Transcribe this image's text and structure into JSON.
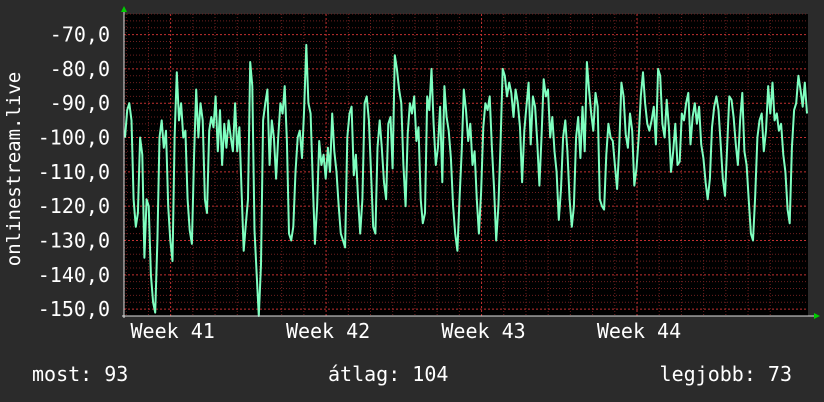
{
  "colors": {
    "background": "#2b2b2b",
    "plot_background": "#000000",
    "grid": "#6e1f1f",
    "line": "#7fffc0",
    "axis": "#e0e0e0",
    "arrow": "#00cc00",
    "text": "#ffffff"
  },
  "stats": {
    "current_label": "most:",
    "current_value": "93",
    "average_label": "átlag:",
    "average_value": "104",
    "best_label": "legjobb:",
    "best_value": "73"
  },
  "chart_data": {
    "type": "line",
    "ylabel": "onlinestream.live",
    "ylim": [
      -152,
      -64
    ],
    "y_ticks": [
      {
        "value": -70,
        "label": "-70,0"
      },
      {
        "value": -80,
        "label": "-80,0"
      },
      {
        "value": -90,
        "label": "-90,0"
      },
      {
        "value": -100,
        "label": "-100,0"
      },
      {
        "value": -110,
        "label": "-110,0"
      },
      {
        "value": -120,
        "label": "-120,0"
      },
      {
        "value": -130,
        "label": "-130,0"
      },
      {
        "value": -140,
        "label": "-140,0"
      },
      {
        "value": -150,
        "label": "-150,0"
      }
    ],
    "x_ticks": [
      {
        "week": 41,
        "label": "Week 41"
      },
      {
        "week": 42,
        "label": "Week 42"
      },
      {
        "week": 43,
        "label": "Week 43"
      },
      {
        "week": 44,
        "label": "Week 44"
      }
    ],
    "xlim_weeks": [
      40.7,
      45.1
    ],
    "grid": true,
    "series": [
      {
        "values": [
          -100,
          -92,
          -90,
          -95,
          -118,
          -126,
          -122,
          -100,
          -105,
          -135,
          -118,
          -120,
          -140,
          -148,
          -151,
          -130,
          -100,
          -95,
          -103,
          -98,
          -120,
          -130,
          -136,
          -100,
          -81,
          -95,
          -90,
          -100,
          -98,
          -118,
          -127,
          -131,
          -105,
          -86,
          -100,
          -90,
          -95,
          -118,
          -122,
          -98,
          -94,
          -97,
          -88,
          -104,
          -92,
          -108,
          -96,
          -103,
          -95,
          -100,
          -104,
          -90,
          -104,
          -97,
          -115,
          -133,
          -125,
          -118,
          -78,
          -85,
          -127,
          -140,
          -152,
          -137,
          -95,
          -90,
          -86,
          -108,
          -95,
          -100,
          -112,
          -100,
          -90,
          -93,
          -85,
          -101,
          -128,
          -130,
          -126,
          -110,
          -100,
          -98,
          -106,
          -92,
          -73,
          -90,
          -93,
          -113,
          -131,
          -120,
          -101,
          -108,
          -105,
          -112,
          -103,
          -110,
          -93,
          -104,
          -110,
          -120,
          -128,
          -130,
          -132,
          -100,
          -93,
          -91,
          -111,
          -105,
          -118,
          -128,
          -118,
          -90,
          -88,
          -95,
          -110,
          -126,
          -128,
          -103,
          -95,
          -103,
          -113,
          -118,
          -96,
          -94,
          -109,
          -76,
          -80,
          -86,
          -90,
          -108,
          -120,
          -99,
          -90,
          -93,
          -88,
          -101,
          -97,
          -118,
          -125,
          -122,
          -88,
          -92,
          -80,
          -96,
          -108,
          -103,
          -91,
          -113,
          -85,
          -94,
          -98,
          -106,
          -120,
          -128,
          -133,
          -118,
          -104,
          -86,
          -92,
          -101,
          -96,
          -108,
          -104,
          -118,
          -128,
          -116,
          -97,
          -90,
          -92,
          -88,
          -103,
          -115,
          -130,
          -120,
          -102,
          -80,
          -82,
          -88,
          -84,
          -87,
          -94,
          -86,
          -90,
          -97,
          -113,
          -98,
          -91,
          -84,
          -102,
          -88,
          -91,
          -101,
          -114,
          -100,
          -83,
          -88,
          -86,
          -100,
          -94,
          -104,
          -110,
          -124,
          -115,
          -100,
          -95,
          -104,
          -118,
          -126,
          -120,
          -100,
          -94,
          -106,
          -91,
          -104,
          -78,
          -86,
          -93,
          -98,
          -87,
          -91,
          -118,
          -120,
          -121,
          -105,
          -96,
          -100,
          -101,
          -108,
          -115,
          -103,
          -84,
          -88,
          -99,
          -103,
          -93,
          -98,
          -114,
          -109,
          -100,
          -88,
          -81,
          -90,
          -96,
          -98,
          -95,
          -91,
          -102,
          -80,
          -82,
          -96,
          -100,
          -89,
          -97,
          -110,
          -104,
          -96,
          -108,
          -107,
          -93,
          -95,
          -90,
          -87,
          -102,
          -94,
          -90,
          -96,
          -91,
          -102,
          -106,
          -113,
          -118,
          -112,
          -97,
          -91,
          -88,
          -92,
          -102,
          -112,
          -117,
          -103,
          -88,
          -89,
          -94,
          -102,
          -108,
          -95,
          -87,
          -104,
          -108,
          -118,
          -128,
          -130,
          -117,
          -100,
          -95,
          -93,
          -104,
          -98,
          -85,
          -93,
          -84,
          -95,
          -93,
          -98,
          -96,
          -105,
          -110,
          -121,
          -125,
          -103,
          -92,
          -90,
          -82,
          -86,
          -91,
          -84,
          -93
        ]
      }
    ]
  }
}
